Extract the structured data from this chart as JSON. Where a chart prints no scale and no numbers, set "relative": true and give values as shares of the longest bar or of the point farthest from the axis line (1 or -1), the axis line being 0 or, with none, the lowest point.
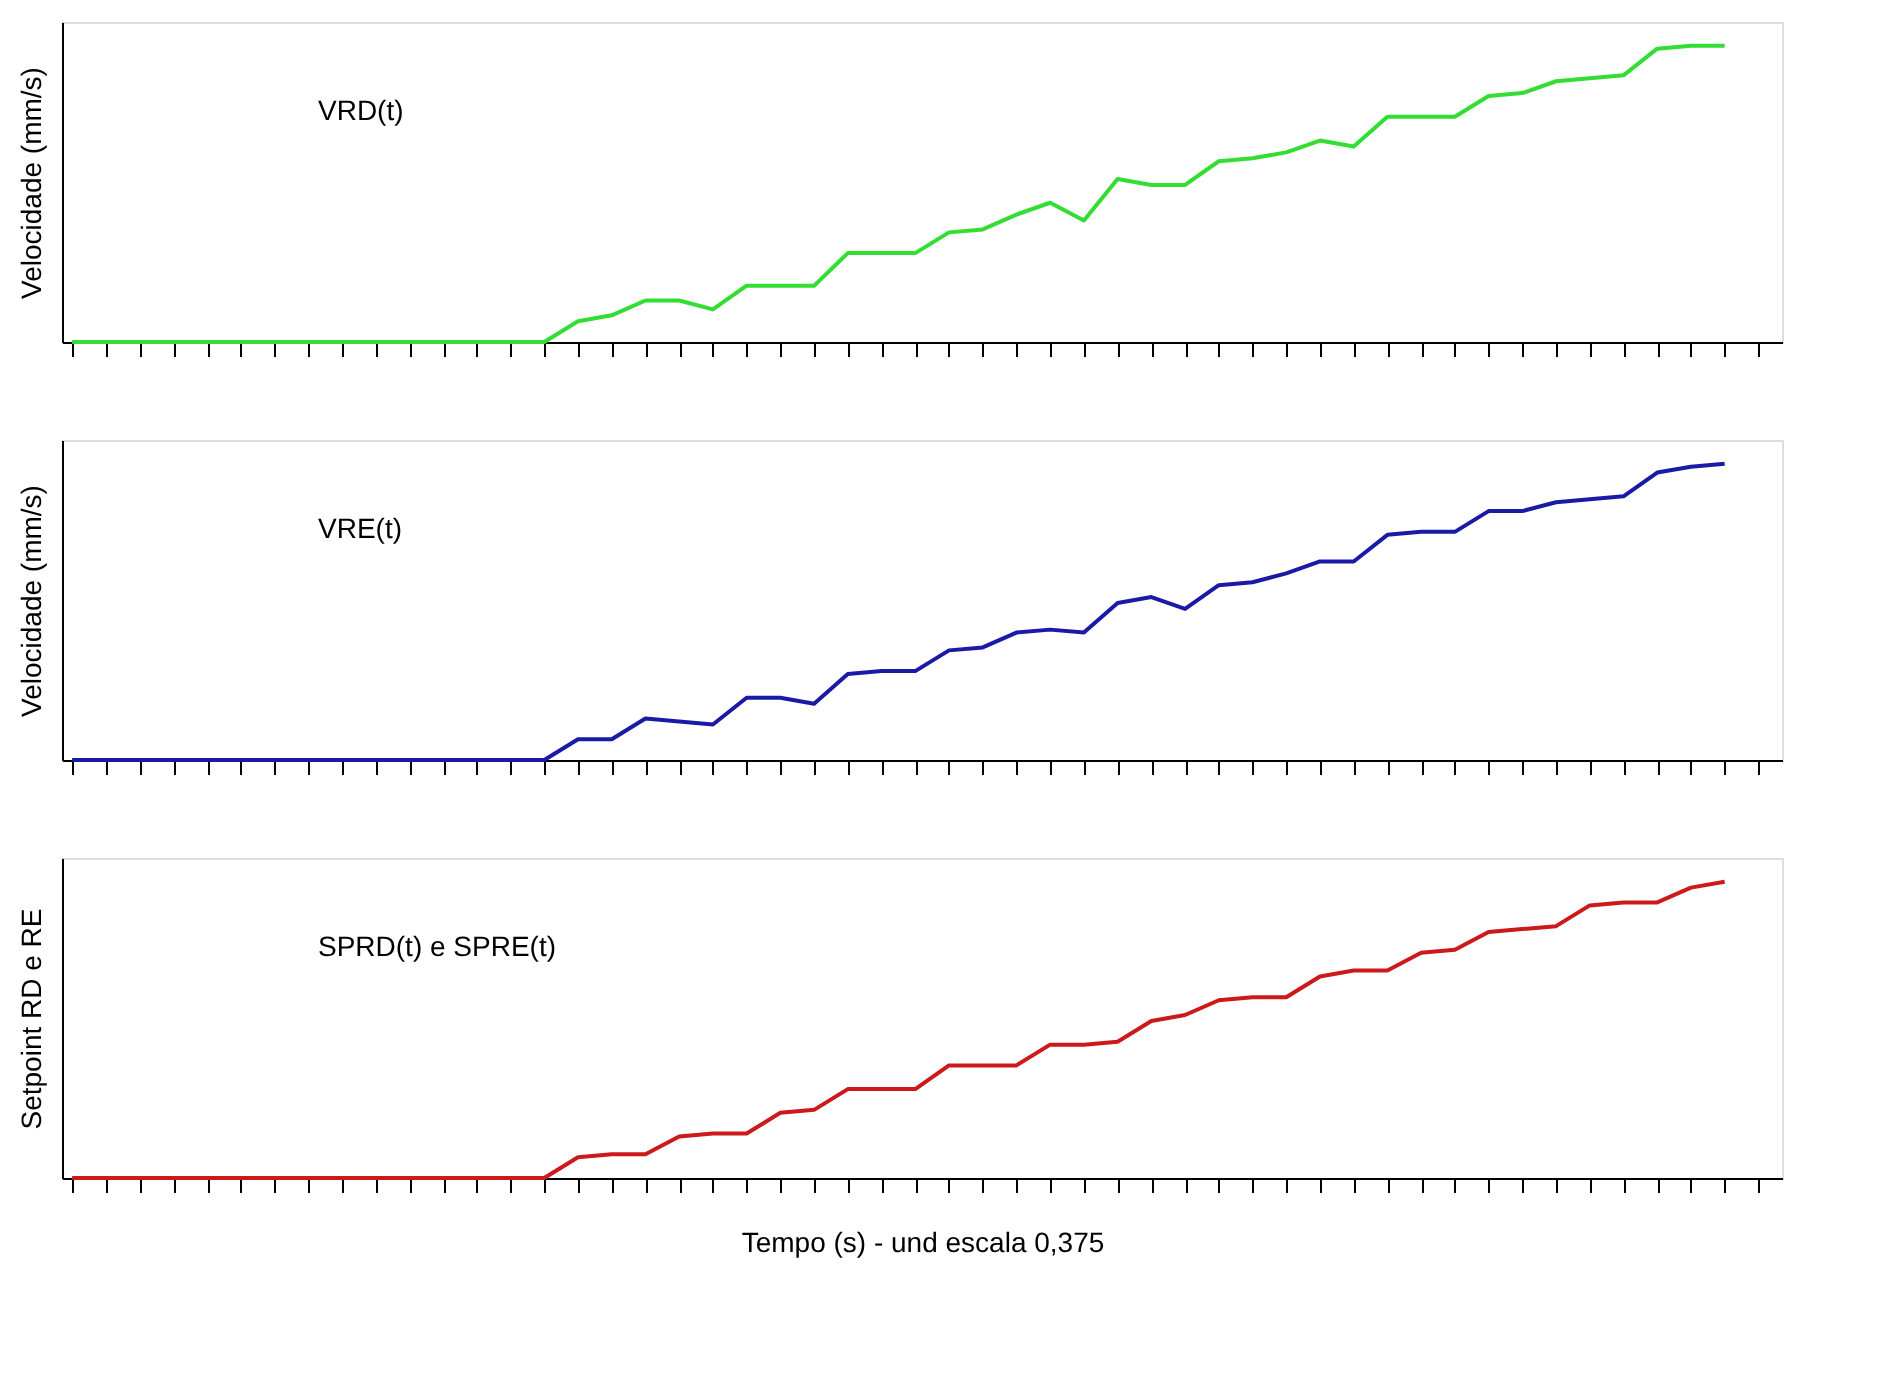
{
  "chart_data": [
    {
      "type": "line",
      "relative": true,
      "ylabel": "Velocidade (mm/s)",
      "tick_labels": false,
      "grid": false,
      "marker": "none",
      "line_style": "solid",
      "categories": [
        null,
        null,
        null,
        null,
        null,
        null,
        null,
        null,
        null,
        null,
        null,
        null,
        null,
        null,
        null,
        null,
        null,
        null,
        null,
        null,
        null,
        null,
        null,
        null,
        null,
        null,
        null,
        null,
        null,
        null,
        null,
        null,
        null,
        null,
        null,
        null,
        null,
        null,
        null,
        null,
        null,
        null,
        null,
        null,
        null,
        null,
        null,
        null,
        null,
        null,
        null
      ],
      "series": [
        {
          "name": "VRD(t)",
          "color": "#33dd33",
          "values": [
            0,
            0,
            0,
            0,
            0,
            0,
            0,
            0,
            0,
            0,
            0,
            0,
            0,
            0,
            0,
            0.07,
            0.09,
            0.14,
            0.14,
            0.11,
            0.19,
            0.19,
            0.19,
            0.3,
            0.3,
            0.3,
            0.37,
            0.38,
            0.43,
            0.47,
            0.41,
            0.55,
            0.53,
            0.53,
            0.61,
            0.62,
            0.64,
            0.68,
            0.66,
            0.76,
            0.76,
            0.76,
            0.83,
            0.84,
            0.88,
            0.89,
            0.9,
            0.99,
            1,
            1,
            null
          ]
        }
      ]
    },
    {
      "type": "line",
      "relative": true,
      "ylabel": "Velocidade (mm/s)",
      "tick_labels": false,
      "grid": false,
      "marker": "none",
      "line_style": "solid",
      "categories": [
        null,
        null,
        null,
        null,
        null,
        null,
        null,
        null,
        null,
        null,
        null,
        null,
        null,
        null,
        null,
        null,
        null,
        null,
        null,
        null,
        null,
        null,
        null,
        null,
        null,
        null,
        null,
        null,
        null,
        null,
        null,
        null,
        null,
        null,
        null,
        null,
        null,
        null,
        null,
        null,
        null,
        null,
        null,
        null,
        null,
        null,
        null,
        null,
        null,
        null,
        null
      ],
      "series": [
        {
          "name": "VRE(t)",
          "color": "#1a1aa6",
          "values": [
            0,
            0,
            0,
            0,
            0,
            0,
            0,
            0,
            0,
            0,
            0,
            0,
            0,
            0,
            0,
            0.07,
            0.07,
            0.14,
            0.13,
            0.12,
            0.21,
            0.21,
            0.19,
            0.29,
            0.3,
            0.3,
            0.37,
            0.38,
            0.43,
            0.44,
            0.43,
            0.53,
            0.55,
            0.51,
            0.59,
            0.6,
            0.63,
            0.67,
            0.67,
            0.76,
            0.77,
            0.77,
            0.84,
            0.84,
            0.87,
            0.88,
            0.89,
            0.97,
            0.99,
            1,
            null
          ]
        }
      ]
    },
    {
      "type": "line",
      "relative": true,
      "ylabel": "Setpoint RD e RE",
      "xlabel": "Tempo (s) - und escala 0,375",
      "tick_labels": false,
      "grid": false,
      "marker": "none",
      "line_style": "solid",
      "categories": [
        null,
        null,
        null,
        null,
        null,
        null,
        null,
        null,
        null,
        null,
        null,
        null,
        null,
        null,
        null,
        null,
        null,
        null,
        null,
        null,
        null,
        null,
        null,
        null,
        null,
        null,
        null,
        null,
        null,
        null,
        null,
        null,
        null,
        null,
        null,
        null,
        null,
        null,
        null,
        null,
        null,
        null,
        null,
        null,
        null,
        null,
        null,
        null,
        null,
        null,
        null
      ],
      "series": [
        {
          "name": "SPRD(t) e SPRE(t)",
          "color": "#cc1a1a",
          "values": [
            0,
            0,
            0,
            0,
            0,
            0,
            0,
            0,
            0,
            0,
            0,
            0,
            0,
            0,
            0,
            0.07,
            0.08,
            0.08,
            0.14,
            0.15,
            0.15,
            0.22,
            0.23,
            0.3,
            0.3,
            0.3,
            0.38,
            0.38,
            0.38,
            0.45,
            0.45,
            0.46,
            0.53,
            0.55,
            0.6,
            0.61,
            0.61,
            0.68,
            0.7,
            0.7,
            0.76,
            0.77,
            0.83,
            0.84,
            0.85,
            0.92,
            0.93,
            0.93,
            0.98,
            1,
            null
          ]
        }
      ]
    }
  ]
}
